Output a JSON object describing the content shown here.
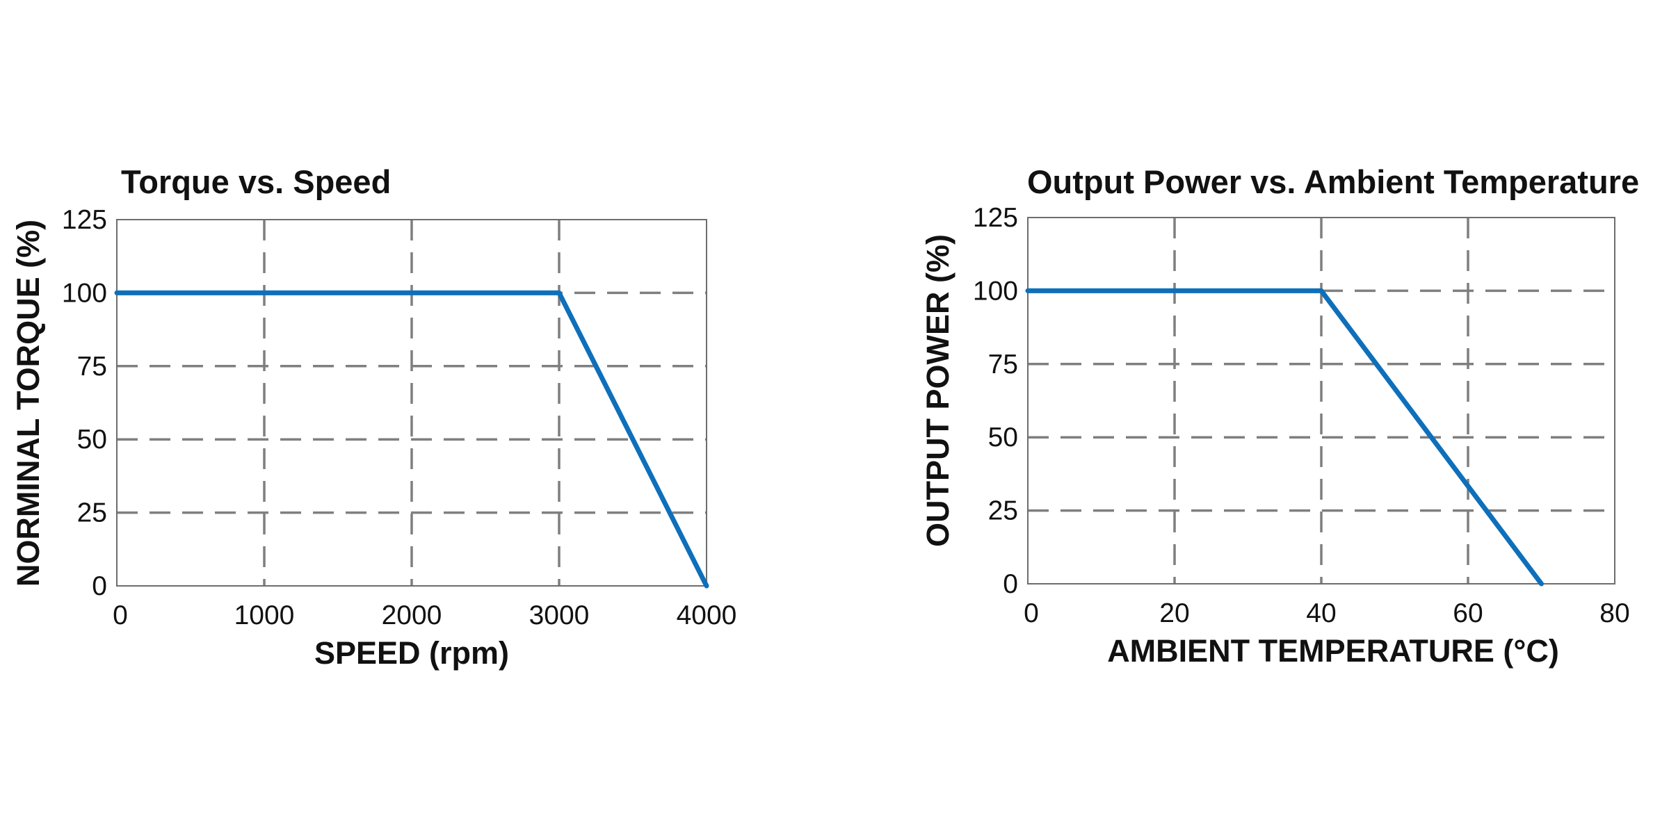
{
  "colors": {
    "series": "#0e6fba",
    "grid": "#7f7f7f",
    "frame": "#6d6d6d",
    "text": "#111111"
  },
  "chart_data": [
    {
      "type": "line",
      "title": "Torque vs. Speed",
      "xlabel": "SPEED (rpm)",
      "ylabel": "NORMINAL TORQUE (%)",
      "xlim": [
        0,
        4000
      ],
      "ylim": [
        0,
        125
      ],
      "xticks": [
        0,
        1000,
        2000,
        3000,
        4000
      ],
      "yticks": [
        0,
        25,
        50,
        75,
        100,
        125
      ],
      "grid": true,
      "series": [
        {
          "x": [
            0,
            3000,
            4000
          ],
          "y": [
            100,
            100,
            0
          ]
        }
      ]
    },
    {
      "type": "line",
      "title": "Output Power vs. Ambient Temperature",
      "xlabel": "AMBIENT TEMPERATURE (°C)",
      "ylabel": "OUTPUT POWER (%)",
      "xlim": [
        0,
        80
      ],
      "ylim": [
        0,
        125
      ],
      "xticks": [
        0,
        20,
        40,
        60,
        80
      ],
      "yticks": [
        0,
        25,
        50,
        75,
        100,
        125
      ],
      "grid": true,
      "series": [
        {
          "x": [
            0,
            40,
            70
          ],
          "y": [
            100,
            100,
            0
          ]
        }
      ]
    }
  ]
}
